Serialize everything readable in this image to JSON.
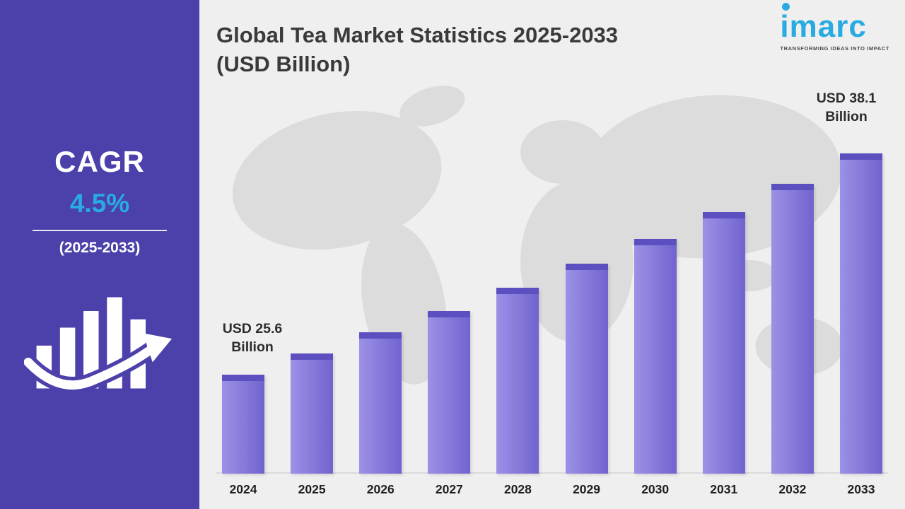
{
  "sidebar": {
    "cagr_label": "CAGR",
    "cagr_value": "4.5%",
    "period": "(2025-2033)",
    "icon": "growth-bars-with-arrow-icon"
  },
  "header": {
    "title_line1": "Global Tea Market Statistics 2025-2033",
    "title_line2": "(USD Billion)"
  },
  "logo": {
    "text": "imarc",
    "tagline": "TRANSFORMING IDEAS INTO IMPACT"
  },
  "colors": {
    "sidebar_bg": "#4c40ab",
    "accent_cyan": "#29abe2",
    "bar_fill": "#8478d9",
    "bar_cap": "#5c4fc0",
    "main_bg": "#f0efef",
    "map_gray": "#dcdcdc",
    "title_text": "#3a3a3a"
  },
  "chart_data": {
    "type": "bar",
    "title": "Global Tea Market Statistics 2025-2033 (USD Billion)",
    "xlabel": "",
    "ylabel": "USD Billion",
    "ylim": [
      20,
      40
    ],
    "grid": false,
    "legend": "none",
    "categories": [
      "2024",
      "2025",
      "2026",
      "2027",
      "2028",
      "2029",
      "2030",
      "2031",
      "2032",
      "2033"
    ],
    "values": [
      25.6,
      26.8,
      28.0,
      29.2,
      30.5,
      31.9,
      33.3,
      34.8,
      36.4,
      38.1
    ],
    "cagr": "4.5%",
    "annotations": [
      {
        "target": "2024",
        "line1": "USD 25.6",
        "line2": "Billion"
      },
      {
        "target": "2033",
        "line1": "USD 38.1",
        "line2": "Billion"
      }
    ]
  }
}
